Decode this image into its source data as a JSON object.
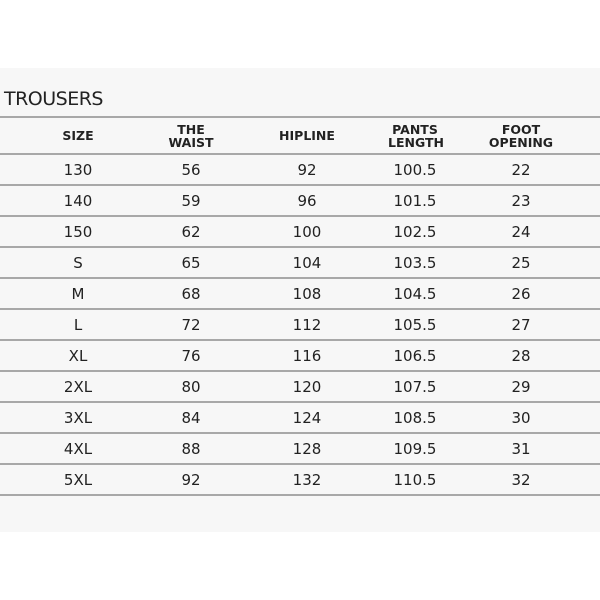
{
  "title": "TROUSERS",
  "columns": [
    "SIZE",
    "THE WAIST",
    "HIPLINE",
    [
      "PANTS",
      "LENGTH"
    ],
    [
      "FOOT",
      "OPENING"
    ]
  ],
  "rows": [
    [
      "130",
      "56",
      "92",
      "100.5",
      "22"
    ],
    [
      "140",
      "59",
      "96",
      "101.5",
      "23"
    ],
    [
      "150",
      "62",
      "100",
      "102.5",
      "24"
    ],
    [
      "S",
      "65",
      "104",
      "103.5",
      "25"
    ],
    [
      "M",
      "68",
      "108",
      "104.5",
      "26"
    ],
    [
      "L",
      "72",
      "112",
      "105.5",
      "27"
    ],
    [
      "XL",
      "76",
      "116",
      "106.5",
      "28"
    ],
    [
      "2XL",
      "80",
      "120",
      "107.5",
      "29"
    ],
    [
      "3XL",
      "84",
      "124",
      "108.5",
      "30"
    ],
    [
      "4XL",
      "88",
      "128",
      "109.5",
      "31"
    ],
    [
      "5XL",
      "92",
      "132",
      "110.5",
      "32"
    ]
  ]
}
